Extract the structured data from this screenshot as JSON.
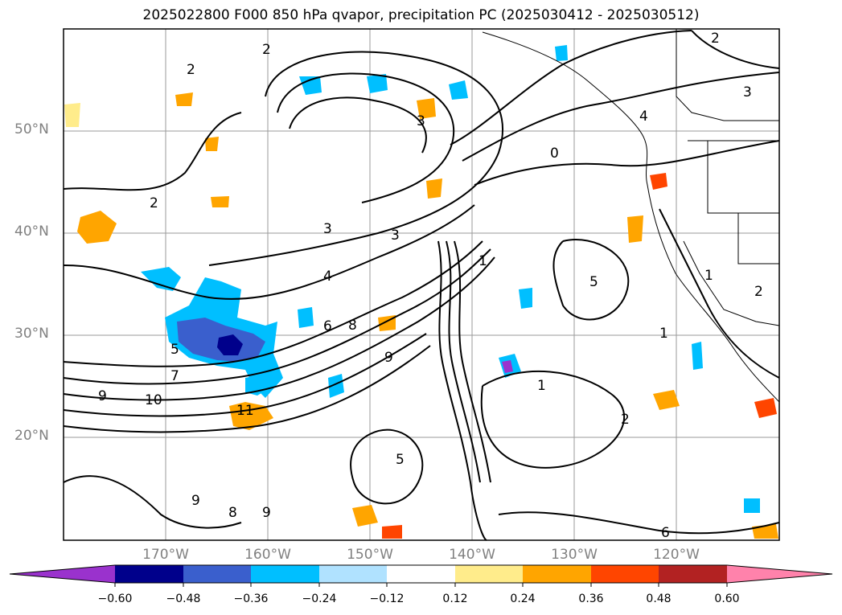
{
  "title": "2025022800 F000 850 hPa qvapor, precipitation PC (2025030412 - 2025030512)",
  "map": {
    "lat_ticks": [
      "50°N",
      "40°N",
      "30°N",
      "20°N"
    ],
    "lon_ticks": [
      "170°W",
      "160°W",
      "150°W",
      "140°W",
      "130°W",
      "120°W"
    ],
    "contour_labels": [
      "2",
      "2",
      "2",
      "2",
      "3",
      "3",
      "3",
      "3",
      "4",
      "4",
      "5",
      "5",
      "6",
      "7",
      "8",
      "9",
      "10",
      "11",
      "1",
      "1",
      "1",
      "1",
      "0",
      "2",
      "2",
      "5",
      "9",
      "9",
      "9",
      "8",
      "6"
    ]
  },
  "colorbar": {
    "ticks": [
      "−0.60",
      "−0.48",
      "−0.36",
      "−0.24",
      "−0.12",
      "0.12",
      "0.24",
      "0.36",
      "0.48",
      "0.60"
    ],
    "colors": [
      "#9a32cd",
      "#00008b",
      "#3a5fcd",
      "#00bfff",
      "#b0e2ff",
      "#ffffff",
      "#ffec8b",
      "#ffa500",
      "#ff4500",
      "#b22222",
      "#ff82ab"
    ]
  }
}
